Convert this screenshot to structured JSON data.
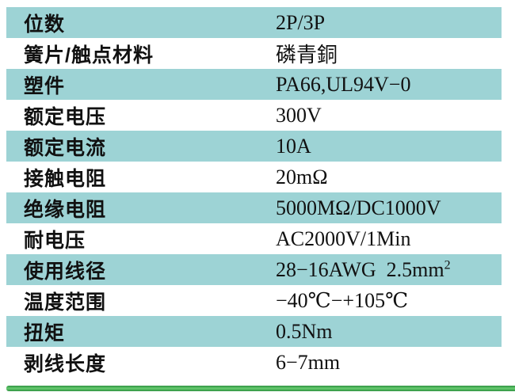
{
  "table": {
    "rows": [
      {
        "label": "位数",
        "value": "2P/3P"
      },
      {
        "label": "簧片/触点材料",
        "value": "磷青銅"
      },
      {
        "label": "塑件",
        "value": "PA66,UL94V−0"
      },
      {
        "label": "额定电压",
        "value": "300V"
      },
      {
        "label": "额定电流",
        "value": "10A"
      },
      {
        "label": "接触电阻",
        "value": "20mΩ"
      },
      {
        "label": "绝缘电阻",
        "value": "5000MΩ/DC1000V"
      },
      {
        "label": "耐电压",
        "value": "AC2000V/1Min"
      },
      {
        "label": "使用线径",
        "value": "28−16AWG  2.5mm",
        "value_superscript": "2"
      },
      {
        "label": "温度范围",
        "value": "−40℃−+105℃"
      },
      {
        "label": "扭矩",
        "value": "0.5Nm"
      },
      {
        "label": "剥线长度",
        "value": "6−7mm"
      }
    ]
  },
  "colors": {
    "row_highlight": "#9dd3d5",
    "row_plain": "#ffffff",
    "text": "#111111",
    "accent_bar_edge": "#2e9140",
    "accent_bar_center": "#67cb70"
  }
}
